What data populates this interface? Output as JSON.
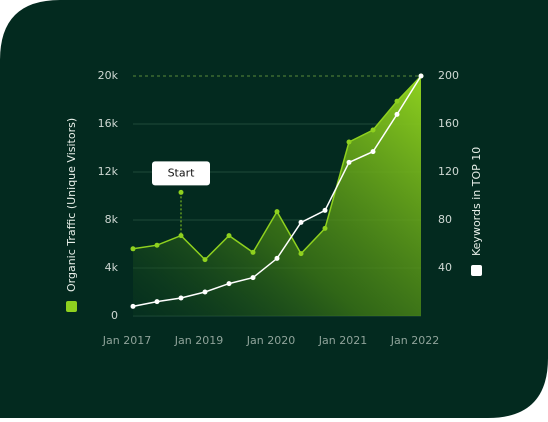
{
  "chart_data": {
    "type": "line",
    "categories": [
      "Jan 2017",
      null,
      null,
      "Jan 2019",
      null,
      null,
      "Jan 2020",
      null,
      null,
      "Jan 2021",
      null,
      null,
      "Jan 2022"
    ],
    "series": [
      {
        "name": "Organic Traffic (Unique Visitors)",
        "color": "#8fd11f",
        "values": [
          5600,
          5900,
          6700,
          4700,
          6700,
          5300,
          8700,
          5200,
          7300,
          14500,
          15500,
          17900,
          20000
        ]
      },
      {
        "name": "Keywords in TOP 10",
        "color": "#ffffff",
        "axis": "y2",
        "values": [
          8,
          12,
          15,
          20,
          27,
          32,
          48,
          78,
          88,
          128,
          137,
          168,
          200
        ]
      }
    ],
    "ylim": [
      0,
      20000
    ],
    "yticks": [
      0,
      {
        "value": 4000,
        "label": "4k"
      },
      {
        "value": 8000,
        "label": "8k"
      },
      {
        "value": 12000,
        "label": "12k"
      },
      {
        "value": 16000,
        "label": "16k"
      },
      {
        "value": 20000,
        "label": "20k"
      }
    ],
    "y2lim": [
      0,
      200
    ],
    "y2ticks": [
      40,
      80,
      120,
      160,
      200
    ],
    "annotation": {
      "text": "Start",
      "index": 2,
      "value": 10300
    },
    "grid": true
  }
}
